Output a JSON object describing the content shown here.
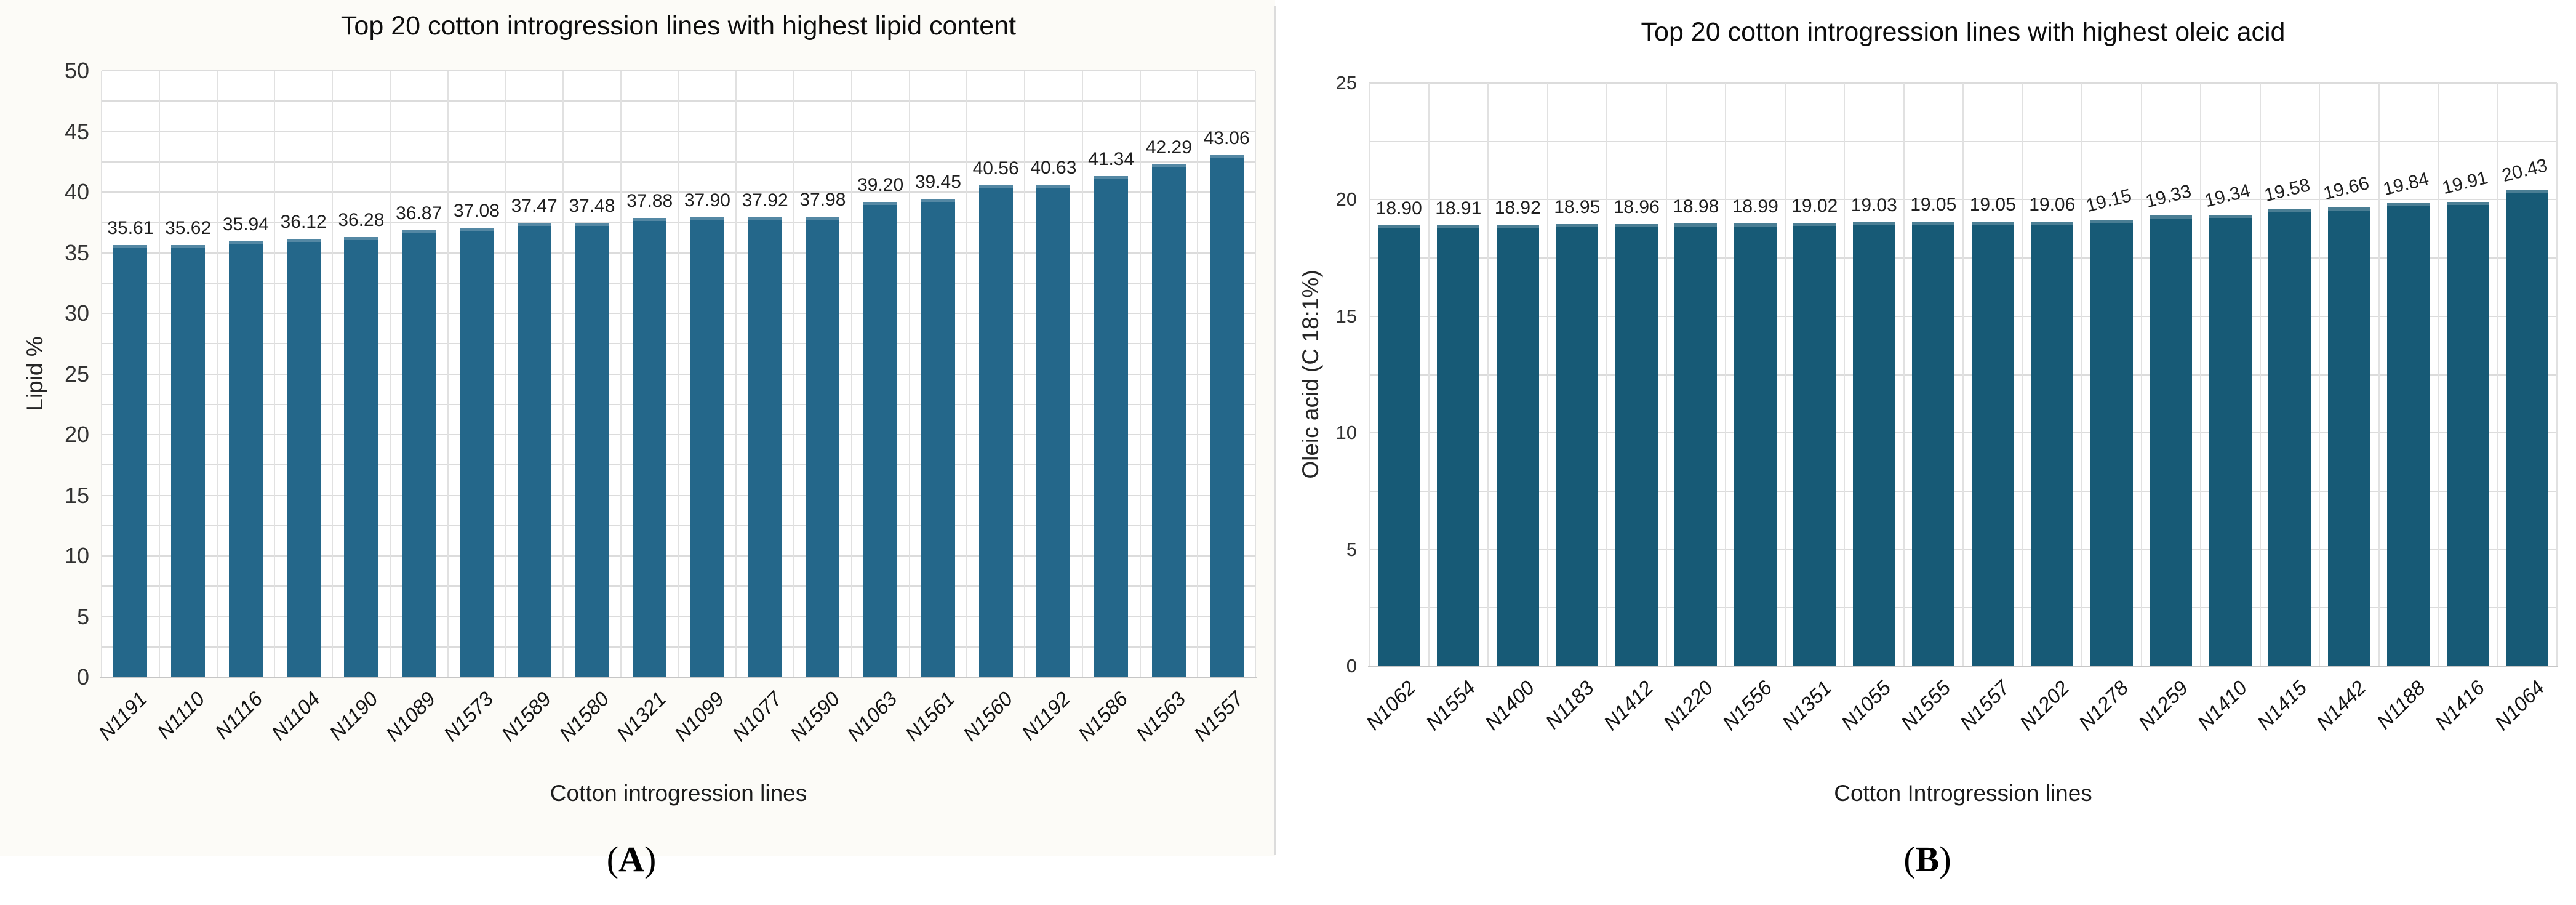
{
  "chart_data": [
    {
      "type": "bar",
      "panel": "A",
      "title": "Top 20 cotton introgression lines with highest lipid content",
      "xlabel": "Cotton introgression lines",
      "ylabel": "Lipid %",
      "ylim": [
        0,
        50
      ],
      "ytick_step": 5,
      "grid_minor_step": 2.5,
      "grid": true,
      "legend_position": "none",
      "bar_color": "#24678a",
      "value_label_decimals": 2,
      "rotate_value_labels_from": null,
      "categories": [
        "N1191",
        "N1110",
        "N1116",
        "N1104",
        "N1190",
        "N1089",
        "N1573",
        "N1589",
        "N1580",
        "N1321",
        "N1099",
        "N1077",
        "N1590",
        "N1063",
        "N1561",
        "N1560",
        "N1192",
        "N1586",
        "N1563",
        "N1557"
      ],
      "values": [
        35.61,
        35.62,
        35.94,
        36.12,
        36.28,
        36.87,
        37.08,
        37.47,
        37.48,
        37.88,
        37.9,
        37.92,
        37.98,
        39.2,
        39.45,
        40.56,
        40.63,
        41.34,
        42.29,
        43.06
      ]
    },
    {
      "type": "bar",
      "panel": "B",
      "title": "Top 20 cotton introgression lines with highest oleic acid",
      "xlabel": "Cotton Introgression lines",
      "ylabel": "Oleic acid (C 18:1%)",
      "ylim": [
        0,
        25
      ],
      "ytick_step": 5,
      "grid_minor_step": 2.5,
      "grid": true,
      "legend_position": "none",
      "bar_color": "#175a76",
      "value_label_decimals": 2,
      "rotate_value_labels_from": 12,
      "categories": [
        "N1062",
        "N1554",
        "N1400",
        "N1183",
        "N1412",
        "N1220",
        "N1556",
        "N1351",
        "N1055",
        "N1555",
        "N1557",
        "N1202",
        "N1278",
        "N1259",
        "N1410",
        "N1415",
        "N1442",
        "N1188",
        "N1416",
        "N1064"
      ],
      "values": [
        18.9,
        18.91,
        18.92,
        18.95,
        18.96,
        18.98,
        18.99,
        19.02,
        19.03,
        19.05,
        19.05,
        19.06,
        19.15,
        19.33,
        19.34,
        19.58,
        19.66,
        19.84,
        19.91,
        20.43
      ]
    }
  ],
  "captions": [
    {
      "open": "(",
      "letter": "A",
      "close": ")"
    },
    {
      "open": "(",
      "letter": "B",
      "close": ")"
    }
  ],
  "style": {
    "gridline_color": "#dcdcdc",
    "axis_line_color": "#c6c6c6",
    "panel_a_background": "#fcfbf7",
    "divider_color": "#dcdcdc"
  }
}
